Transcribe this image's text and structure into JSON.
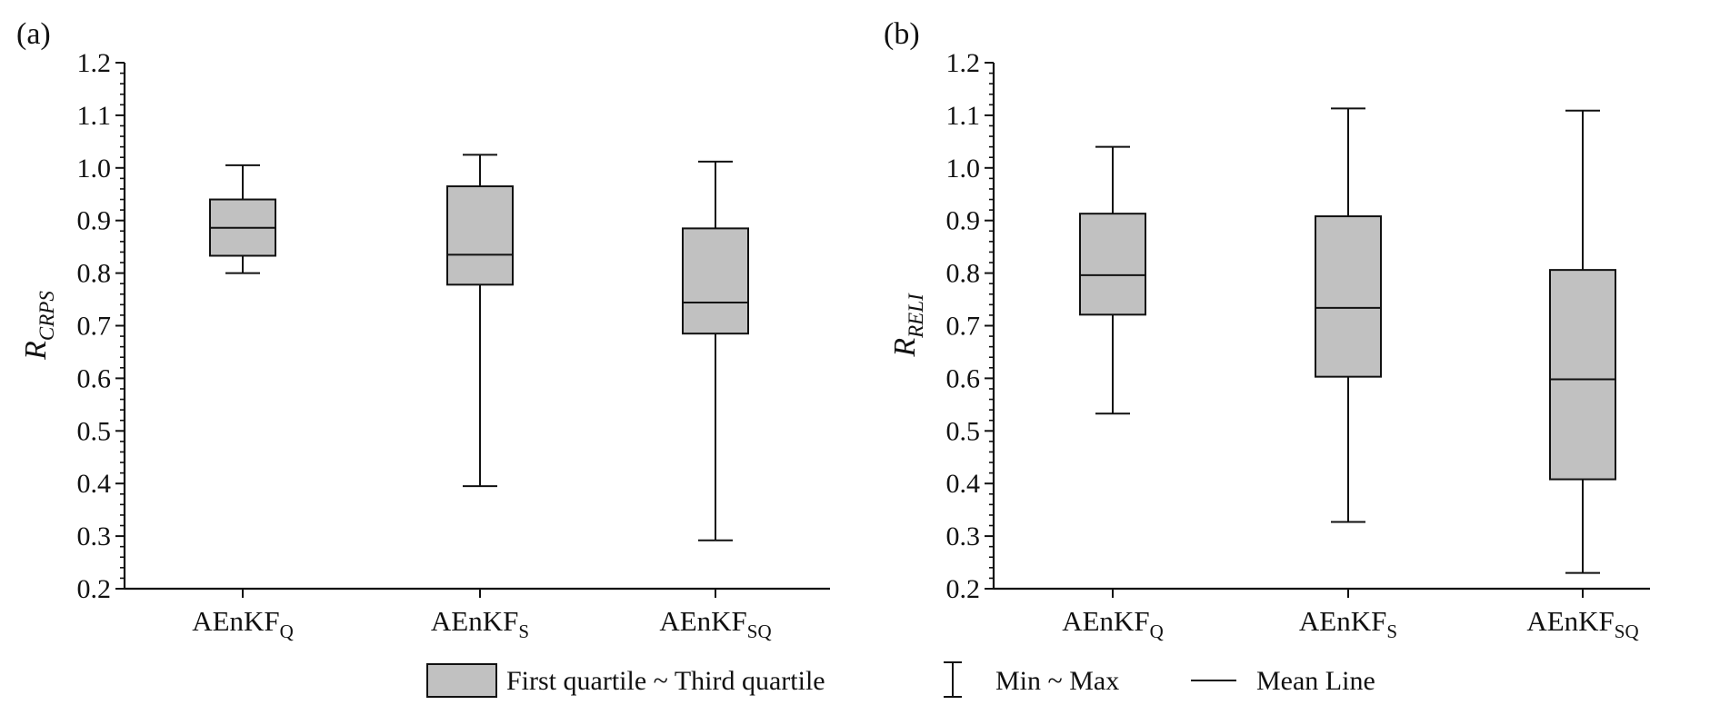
{
  "legend": {
    "box_label": "First quartile ~ Third quartile",
    "whisker_label": "Min ~ Max",
    "mean_label": "Mean Line"
  },
  "colors": {
    "box_fill": "#c1c1c1",
    "stroke": "#111111"
  },
  "chart_data": [
    {
      "type": "box",
      "panel_tag": "(a)",
      "ylabel_main": "R",
      "ylabel_sub": "CRPS",
      "ylim": [
        0.2,
        1.2
      ],
      "yticks": [
        "0.2",
        "0.3",
        "0.4",
        "0.5",
        "0.6",
        "0.7",
        "0.8",
        "0.9",
        "1.0",
        "1.1",
        "1.2"
      ],
      "categories": [
        {
          "main": "AEnKF",
          "sub": "Q"
        },
        {
          "main": "AEnKF",
          "sub": "S"
        },
        {
          "main": "AEnKF",
          "sub": "SQ"
        }
      ],
      "boxes": [
        {
          "min": 0.8,
          "q1": 0.833,
          "mean": 0.886,
          "q3": 0.94,
          "max": 1.005
        },
        {
          "min": 0.395,
          "q1": 0.778,
          "mean": 0.835,
          "q3": 0.965,
          "max": 1.025
        },
        {
          "min": 0.292,
          "q1": 0.685,
          "mean": 0.744,
          "q3": 0.885,
          "max": 1.012
        }
      ]
    },
    {
      "type": "box",
      "panel_tag": "(b)",
      "ylabel_main": "R",
      "ylabel_sub": "RELI",
      "ylim": [
        0.2,
        1.2
      ],
      "yticks": [
        "0.2",
        "0.3",
        "0.4",
        "0.5",
        "0.6",
        "0.7",
        "0.8",
        "0.9",
        "1.0",
        "1.1",
        "1.2"
      ],
      "categories": [
        {
          "main": "AEnKF",
          "sub": "Q"
        },
        {
          "main": "AEnKF",
          "sub": "S"
        },
        {
          "main": "AEnKF",
          "sub": "SQ"
        }
      ],
      "boxes": [
        {
          "min": 0.533,
          "q1": 0.721,
          "mean": 0.796,
          "q3": 0.913,
          "max": 1.04
        },
        {
          "min": 0.327,
          "q1": 0.603,
          "mean": 0.734,
          "q3": 0.908,
          "max": 1.113
        },
        {
          "min": 0.23,
          "q1": 0.408,
          "mean": 0.598,
          "q3": 0.806,
          "max": 1.109
        }
      ]
    }
  ]
}
